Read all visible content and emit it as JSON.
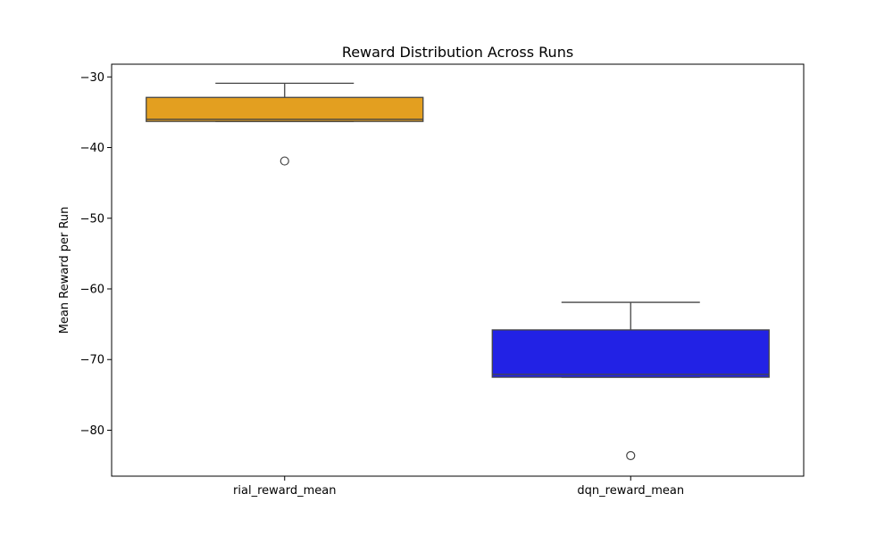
{
  "chart_data": {
    "type": "box",
    "title": "Reward Distribution Across Runs",
    "xlabel": "",
    "ylabel": "Mean Reward per Run",
    "ylim": [
      -86.5,
      -28.2
    ],
    "yticks": [
      -30,
      -40,
      -50,
      -60,
      -70,
      -80
    ],
    "ytick_labels": [
      "−30",
      "−40",
      "−50",
      "−60",
      "−70",
      "−80"
    ],
    "grid": false,
    "categories": [
      "rial_reward_mean",
      "dqn_reward_mean"
    ],
    "boxes": [
      {
        "category": "rial_reward_mean",
        "color": "#e39f20",
        "whisker_low": -36.3,
        "q1": -36.3,
        "median": -36.0,
        "q3": -32.9,
        "whisker_high": -30.9,
        "outliers": [
          -41.9
        ]
      },
      {
        "category": "dqn_reward_mean",
        "color": "#2222e5",
        "whisker_low": -72.5,
        "q1": -72.5,
        "median": -72.1,
        "q3": -65.8,
        "whisker_high": -61.9,
        "outliers": [
          -83.6
        ]
      }
    ]
  }
}
